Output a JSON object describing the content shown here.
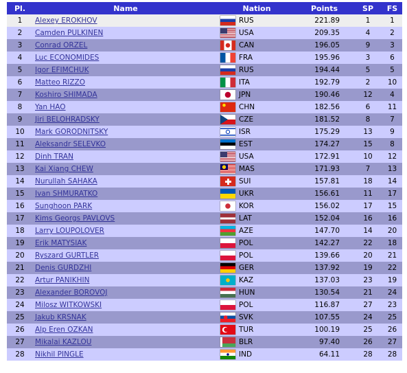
{
  "header": {
    "columns": [
      "Pl.",
      "Name",
      "Nation",
      "Points",
      "SP",
      "FS"
    ]
  },
  "table": {
    "rows": [
      [
        1,
        "Alexey EROKHOV",
        "RUS",
        "221.89",
        1,
        1
      ],
      [
        2,
        "Camden PULKINEN",
        "USA",
        "209.35",
        4,
        2
      ],
      [
        3,
        "Conrad ORZEL",
        "CAN",
        "196.05",
        9,
        3
      ],
      [
        4,
        "Luc ECONOMIDES",
        "FRA",
        "195.96",
        3,
        6
      ],
      [
        5,
        "Igor EFIMCHUK",
        "RUS",
        "194.44",
        5,
        5
      ],
      [
        6,
        "Matteo RIZZO",
        "ITA",
        "192.79",
        2,
        10
      ],
      [
        7,
        "Koshiro SHIMADA",
        "JPN",
        "190.46",
        12,
        4
      ],
      [
        8,
        "Yan HAO",
        "CHN",
        "182.56",
        6,
        11
      ],
      [
        9,
        "Jiri BELOHRADSKY",
        "CZE",
        "181.52",
        8,
        7
      ],
      [
        10,
        "Mark GORODNITSKY",
        "ISR",
        "175.29",
        13,
        9
      ],
      [
        11,
        "Aleksandr SELEVKO",
        "EST",
        "174.27",
        15,
        8
      ],
      [
        12,
        "Dinh TRAN",
        "USA",
        "172.91",
        10,
        12
      ],
      [
        13,
        "Kai Xiang CHEW",
        "MAS",
        "171.93",
        7,
        13
      ],
      [
        14,
        "Nurullah SAHAKA",
        "SUI",
        "157.81",
        18,
        14
      ],
      [
        15,
        "Ivan SHMURATKO",
        "UKR",
        "156.61",
        11,
        17
      ],
      [
        16,
        "Sunghoon PARK",
        "KOR",
        "156.02",
        17,
        15
      ],
      [
        17,
        "Kims Georgs PAVLOVS",
        "LAT",
        "152.04",
        16,
        16
      ],
      [
        18,
        "Larry LOUPOLOVER",
        "AZE",
        "147.70",
        14,
        20
      ],
      [
        19,
        "Erik MATYSIAK",
        "POL",
        "142.27",
        22,
        18
      ],
      [
        20,
        "Ryszard GURTLER",
        "POL",
        "139.66",
        20,
        21
      ],
      [
        21,
        "Denis GURDZHI",
        "GER",
        "137.92",
        19,
        22
      ],
      [
        22,
        "Artur PANIKHIN",
        "KAZ",
        "137.03",
        23,
        19
      ],
      [
        23,
        "Alexander BOROVOJ",
        "HUN",
        "130.54",
        21,
        24
      ],
      [
        24,
        "Milosz WITKOWSKI",
        "POL",
        "116.87",
        27,
        23
      ],
      [
        25,
        "Jakub KRSNAK",
        "SVK",
        "107.55",
        24,
        25
      ],
      [
        26,
        "Alp Eren OZKAN",
        "TUR",
        "100.19",
        25,
        26
      ],
      [
        27,
        "Mikalai KAZLOU",
        "BLR",
        "97.40",
        26,
        27
      ],
      [
        28,
        "Nikhil PINGLE",
        "IND",
        "64.11",
        28,
        28
      ]
    ]
  }
}
